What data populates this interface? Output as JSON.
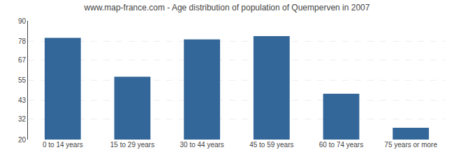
{
  "chart_data": {
    "type": "bar",
    "title": "www.map-france.com - Age distribution of population of Quemperven in 2007",
    "categories": [
      "0 to 14 years",
      "15 to 29 years",
      "30 to 44 years",
      "45 to 59 years",
      "60 to 74 years",
      "75 years or more"
    ],
    "values": [
      80,
      57,
      79,
      81,
      47,
      27
    ],
    "color": "#336699",
    "ylim": [
      20,
      90
    ],
    "yticks": [
      20,
      32,
      43,
      55,
      67,
      78,
      90
    ],
    "grid": true
  }
}
